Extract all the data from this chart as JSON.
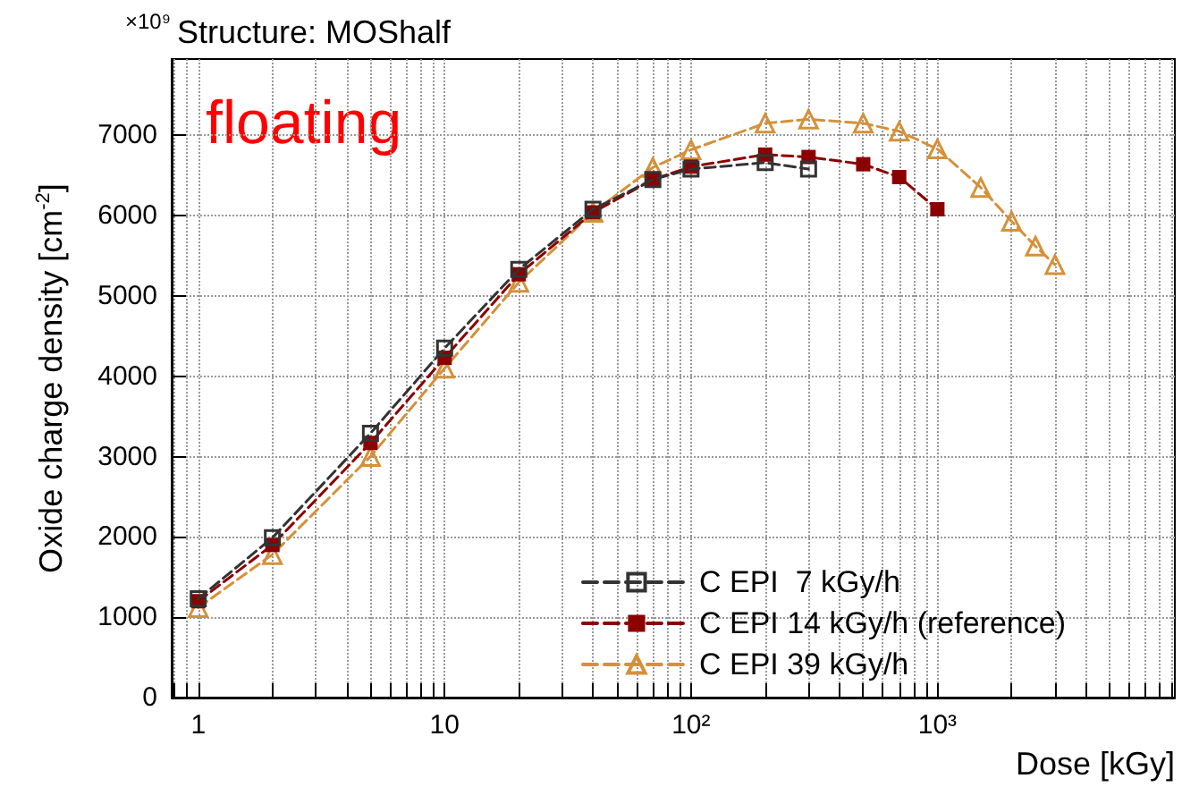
{
  "chart_data": {
    "type": "line",
    "title": "Structure: MOShalf",
    "xlabel": "Dose [kGy]",
    "ylabel": "Oxide charge density [cm$^{-2}$]",
    "annotations": [
      "×10⁹",
      "floating"
    ],
    "log": "x",
    "grid": true,
    "legend": "bottom right",
    "line_style": "dashed",
    "xlim": [
      0.78,
      9200
    ],
    "ylim": [
      0,
      7950
    ],
    "xticks": [
      {
        "value": 0.8,
        "label": null
      },
      {
        "value": 0.9,
        "label": null
      },
      1,
      {
        "value": 2,
        "label": null
      },
      {
        "value": 3,
        "label": null
      },
      {
        "value": 4,
        "label": null
      },
      {
        "value": 5,
        "label": null
      },
      {
        "value": 6,
        "label": null
      },
      {
        "value": 7,
        "label": null
      },
      {
        "value": 8,
        "label": null
      },
      {
        "value": 9,
        "label": null
      },
      10,
      {
        "value": 20,
        "label": null
      },
      {
        "value": 30,
        "label": null
      },
      {
        "value": 40,
        "label": null
      },
      {
        "value": 50,
        "label": null
      },
      {
        "value": 60,
        "label": null
      },
      {
        "value": 70,
        "label": null
      },
      {
        "value": 80,
        "label": null
      },
      {
        "value": 90,
        "label": null
      },
      {
        "value": 100,
        "label": "10²"
      },
      {
        "value": 200,
        "label": null
      },
      {
        "value": 300,
        "label": null
      },
      {
        "value": 400,
        "label": null
      },
      {
        "value": 500,
        "label": null
      },
      {
        "value": 600,
        "label": null
      },
      {
        "value": 700,
        "label": null
      },
      {
        "value": 800,
        "label": null
      },
      {
        "value": 900,
        "label": null
      },
      {
        "value": 1000,
        "label": "10³"
      },
      {
        "value": 2000,
        "label": null
      },
      {
        "value": 3000,
        "label": null
      },
      {
        "value": 4000,
        "label": null
      },
      {
        "value": 5000,
        "label": null
      },
      {
        "value": 6000,
        "label": null
      },
      {
        "value": 7000,
        "label": null
      },
      {
        "value": 8000,
        "label": null
      },
      {
        "value": 9000,
        "label": null
      }
    ],
    "yticks": [
      0,
      1000,
      2000,
      3000,
      4000,
      5000,
      6000,
      7000
    ],
    "series": [
      {
        "name": "C EPI  7 kGy/h",
        "color": "#333333",
        "marker": "square",
        "x": [
          1,
          2,
          5,
          10,
          20,
          40,
          70,
          100,
          200,
          300
        ],
        "values": [
          1230,
          1990,
          3290,
          4350,
          5330,
          6080,
          6450,
          6580,
          6660,
          6580
        ]
      },
      {
        "name": "C EPI 14 kGy/h (reference)",
        "color": "#8b0000",
        "marker": "square",
        "x": [
          1,
          2,
          5,
          10,
          20,
          40,
          70,
          100,
          200,
          300,
          500,
          700,
          1000
        ],
        "values": [
          1200,
          1900,
          3170,
          4230,
          5270,
          6040,
          6450,
          6610,
          6760,
          6730,
          6640,
          6480,
          6080
        ]
      },
      {
        "name": "C EPI 39 kGy/h",
        "color": "#d4913a",
        "marker": "triangle",
        "x": [
          1,
          2,
          5,
          10,
          20,
          40,
          70,
          100,
          200,
          300,
          500,
          700,
          1000,
          1500,
          2000,
          2500,
          3000
        ],
        "values": [
          1120,
          1780,
          3000,
          4100,
          5170,
          6040,
          6600,
          6820,
          7150,
          7200,
          7150,
          7050,
          6830,
          6350,
          5930,
          5620,
          5390
        ]
      }
    ]
  }
}
